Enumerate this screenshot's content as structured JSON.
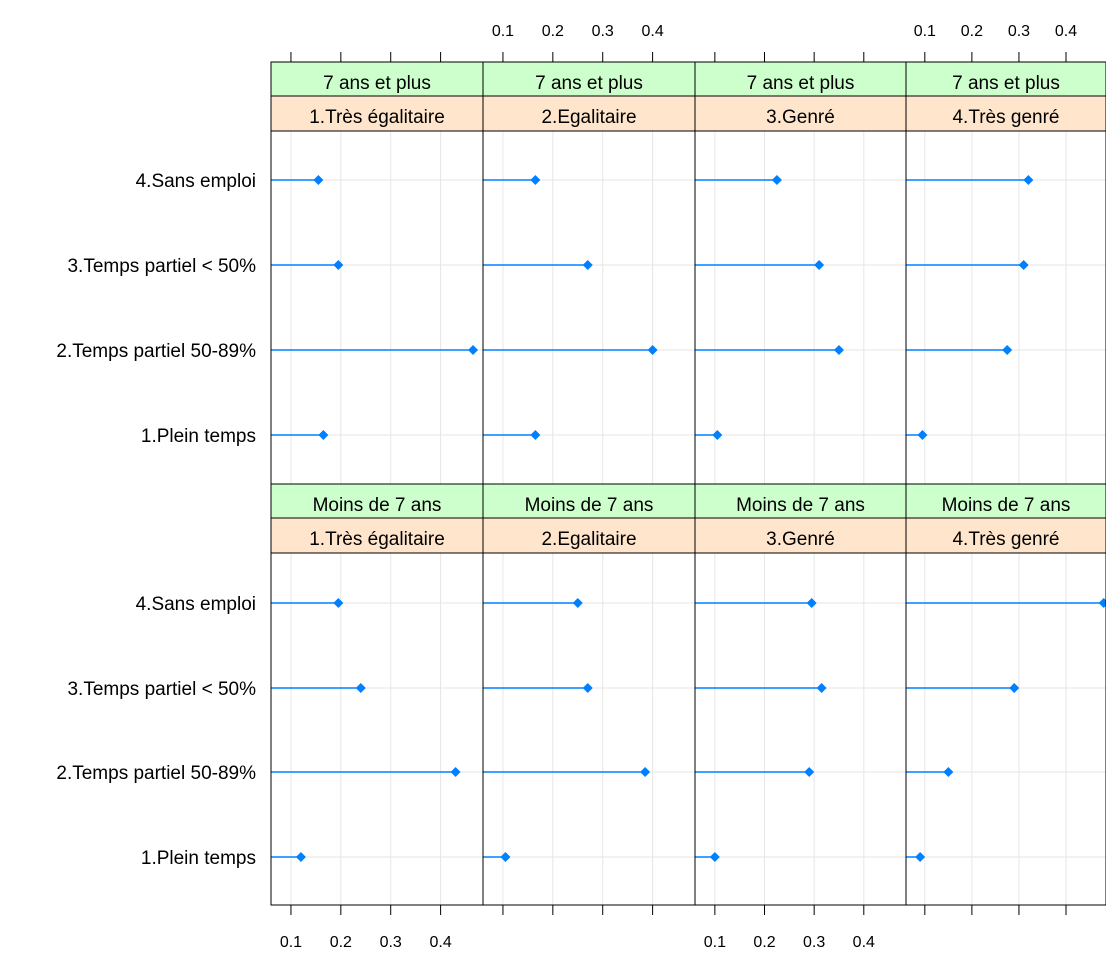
{
  "chart_data": {
    "type": "dotplot",
    "x_ticks": [
      0.1,
      0.2,
      0.3,
      0.4
    ],
    "xlim": [
      0.06,
      0.485
    ],
    "grid": true,
    "categories": [
      "1.Plein temps",
      "2.Temps partiel 50-89%",
      "3.Temps partiel < 50%",
      "4.Sans emploi"
    ],
    "columns": [
      "1.Très égalitaire",
      "2.Egalitaire",
      "3.Genré",
      "4.Très genré"
    ],
    "rows": [
      "7 ans et plus",
      "Moins de 7 ans"
    ],
    "strip_colors": {
      "outer": "#ccffcc",
      "inner": "#ffe5cc"
    },
    "point_color": "#0080ff",
    "panels": [
      {
        "row": "7 ans et plus",
        "column": "1.Très égalitaire",
        "values": [
          0.165,
          0.465,
          0.195,
          0.155
        ]
      },
      {
        "row": "7 ans et plus",
        "column": "2.Egalitaire",
        "values": [
          0.165,
          0.4,
          0.27,
          0.165
        ]
      },
      {
        "row": "7 ans et plus",
        "column": "3.Genré",
        "values": [
          0.105,
          0.35,
          0.31,
          0.225
        ]
      },
      {
        "row": "7 ans et plus",
        "column": "4.Très genré",
        "values": [
          0.095,
          0.275,
          0.31,
          0.32
        ]
      },
      {
        "row": "Moins de 7 ans",
        "column": "1.Très égalitaire",
        "values": [
          0.12,
          0.43,
          0.24,
          0.195
        ]
      },
      {
        "row": "Moins de 7 ans",
        "column": "2.Egalitaire",
        "values": [
          0.105,
          0.385,
          0.27,
          0.25
        ]
      },
      {
        "row": "Moins de 7 ans",
        "column": "3.Genré",
        "values": [
          0.1,
          0.29,
          0.315,
          0.295
        ]
      },
      {
        "row": "Moins de 7 ans",
        "column": "4.Très genré",
        "values": [
          0.09,
          0.15,
          0.29,
          0.48
        ]
      }
    ]
  }
}
